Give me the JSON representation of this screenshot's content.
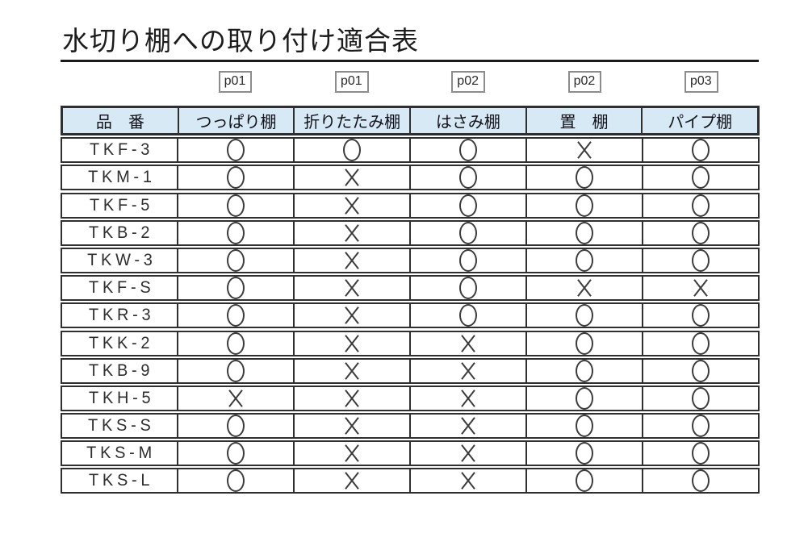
{
  "page": {
    "title": "水切り棚への取り付け適合表"
  },
  "table": {
    "page_refs": [
      "p01",
      "p01",
      "p02",
      "p02",
      "p03"
    ],
    "columns": [
      "品　番",
      "つっぱり棚",
      "折りたたみ棚",
      "はさみ棚",
      "置　棚",
      "パイプ棚"
    ],
    "rows": [
      {
        "code": "TKF-3",
        "marks": [
          "○",
          "○",
          "○",
          "×",
          "○"
        ]
      },
      {
        "code": "TKM-1",
        "marks": [
          "○",
          "×",
          "○",
          "○",
          "○"
        ]
      },
      {
        "code": "TKF-5",
        "marks": [
          "○",
          "×",
          "○",
          "○",
          "○"
        ]
      },
      {
        "code": "TKB-2",
        "marks": [
          "○",
          "×",
          "○",
          "○",
          "○"
        ]
      },
      {
        "code": "TKW-3",
        "marks": [
          "○",
          "×",
          "○",
          "○",
          "○"
        ]
      },
      {
        "code": "TKF-S",
        "marks": [
          "○",
          "×",
          "○",
          "×",
          "×"
        ]
      },
      {
        "code": "TKR-3",
        "marks": [
          "○",
          "×",
          "○",
          "○",
          "○"
        ]
      },
      {
        "code": "TKK-2",
        "marks": [
          "○",
          "×",
          "×",
          "○",
          "○"
        ]
      },
      {
        "code": "TKB-9",
        "marks": [
          "○",
          "×",
          "×",
          "○",
          "○"
        ]
      },
      {
        "code": "TKH-5",
        "marks": [
          "×",
          "×",
          "×",
          "○",
          "○"
        ]
      },
      {
        "code": "TKS-S",
        "marks": [
          "○",
          "×",
          "×",
          "○",
          "○"
        ]
      },
      {
        "code": "TKS-M",
        "marks": [
          "○",
          "×",
          "×",
          "○",
          "○"
        ]
      },
      {
        "code": "TKS-L",
        "marks": [
          "○",
          "×",
          "×",
          "○",
          "○"
        ]
      }
    ],
    "colors": {
      "header_bg": "#d6e9f5",
      "border": "#2f2f2f",
      "mark": "#3c3c3c",
      "tag_border": "#8c8c8c"
    }
  }
}
